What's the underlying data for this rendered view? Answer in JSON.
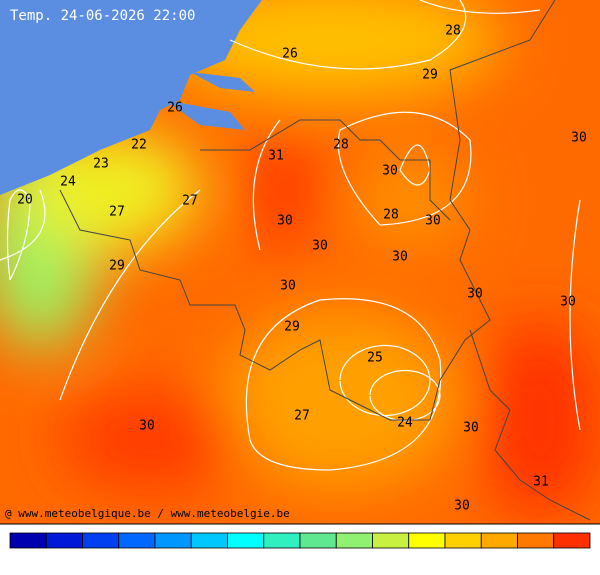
{
  "header": {
    "title": "Temp. 24-06-2026 22:00"
  },
  "isotherm_labels": [
    26,
    28,
    29,
    26,
    30,
    31,
    28,
    30,
    22,
    23,
    24,
    20,
    27,
    27,
    28,
    30,
    30,
    30,
    30,
    29,
    30,
    30,
    30,
    29,
    25,
    27,
    24,
    30,
    30,
    31,
    30
  ],
  "footer": {
    "credit": "@ www.meteobelgique.be / www.meteobelgie.be"
  }
}
